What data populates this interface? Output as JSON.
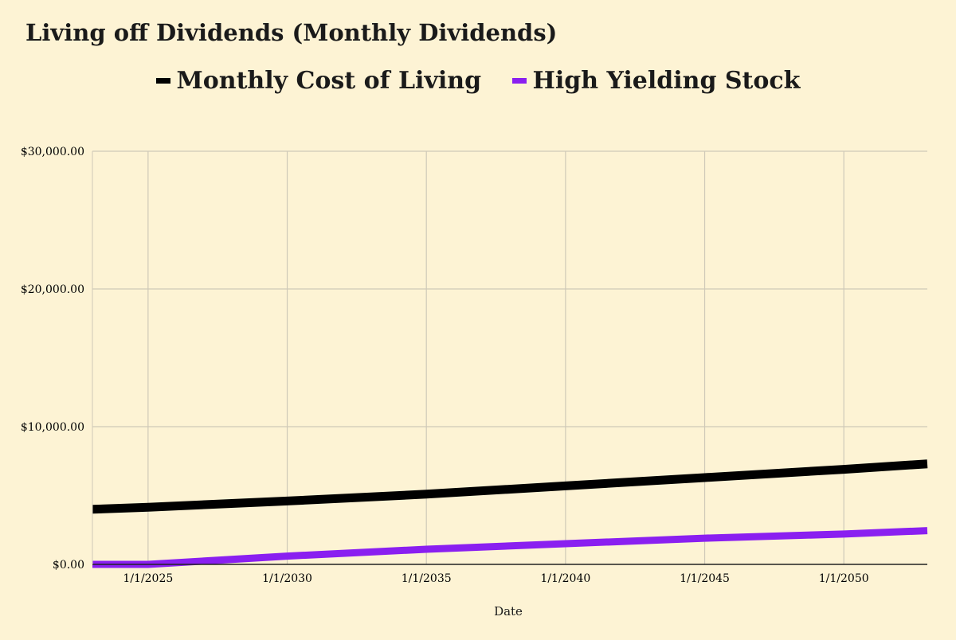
{
  "chart_data": {
    "type": "line",
    "title": "Living off Dividends (Monthly Dividends)",
    "xlabel": "Date",
    "ylabel": "",
    "xlim": [
      2023,
      2053
    ],
    "ylim": [
      0,
      30000
    ],
    "yticks": [
      {
        "value": 0,
        "label": "$0.00"
      },
      {
        "value": 10000,
        "label": "$10,000.00"
      },
      {
        "value": 20000,
        "label": "$20,000.00"
      },
      {
        "value": 30000,
        "label": "$30,000.00"
      }
    ],
    "xticks": [
      {
        "value": 2025,
        "label": "1/1/2025"
      },
      {
        "value": 2030,
        "label": "1/1/2030"
      },
      {
        "value": 2035,
        "label": "1/1/2035"
      },
      {
        "value": 2040,
        "label": "1/1/2040"
      },
      {
        "value": 2045,
        "label": "1/1/2045"
      },
      {
        "value": 2050,
        "label": "1/1/2050"
      }
    ],
    "legend_position": "top-center",
    "grid": true,
    "series": [
      {
        "name": "Monthly Cost of Living",
        "color": "#000000",
        "x": [
          2023,
          2025,
          2030,
          2035,
          2040,
          2045,
          2050,
          2053
        ],
        "values": [
          4000,
          4150,
          4600,
          5100,
          5700,
          6300,
          6900,
          7300
        ]
      },
      {
        "name": "High Yielding Stock",
        "color": "#8a1ff0",
        "x": [
          2023,
          2025,
          2030,
          2035,
          2040,
          2045,
          2050,
          2053
        ],
        "values": [
          0,
          0,
          600,
          1100,
          1500,
          1900,
          2200,
          2450
        ]
      }
    ]
  }
}
